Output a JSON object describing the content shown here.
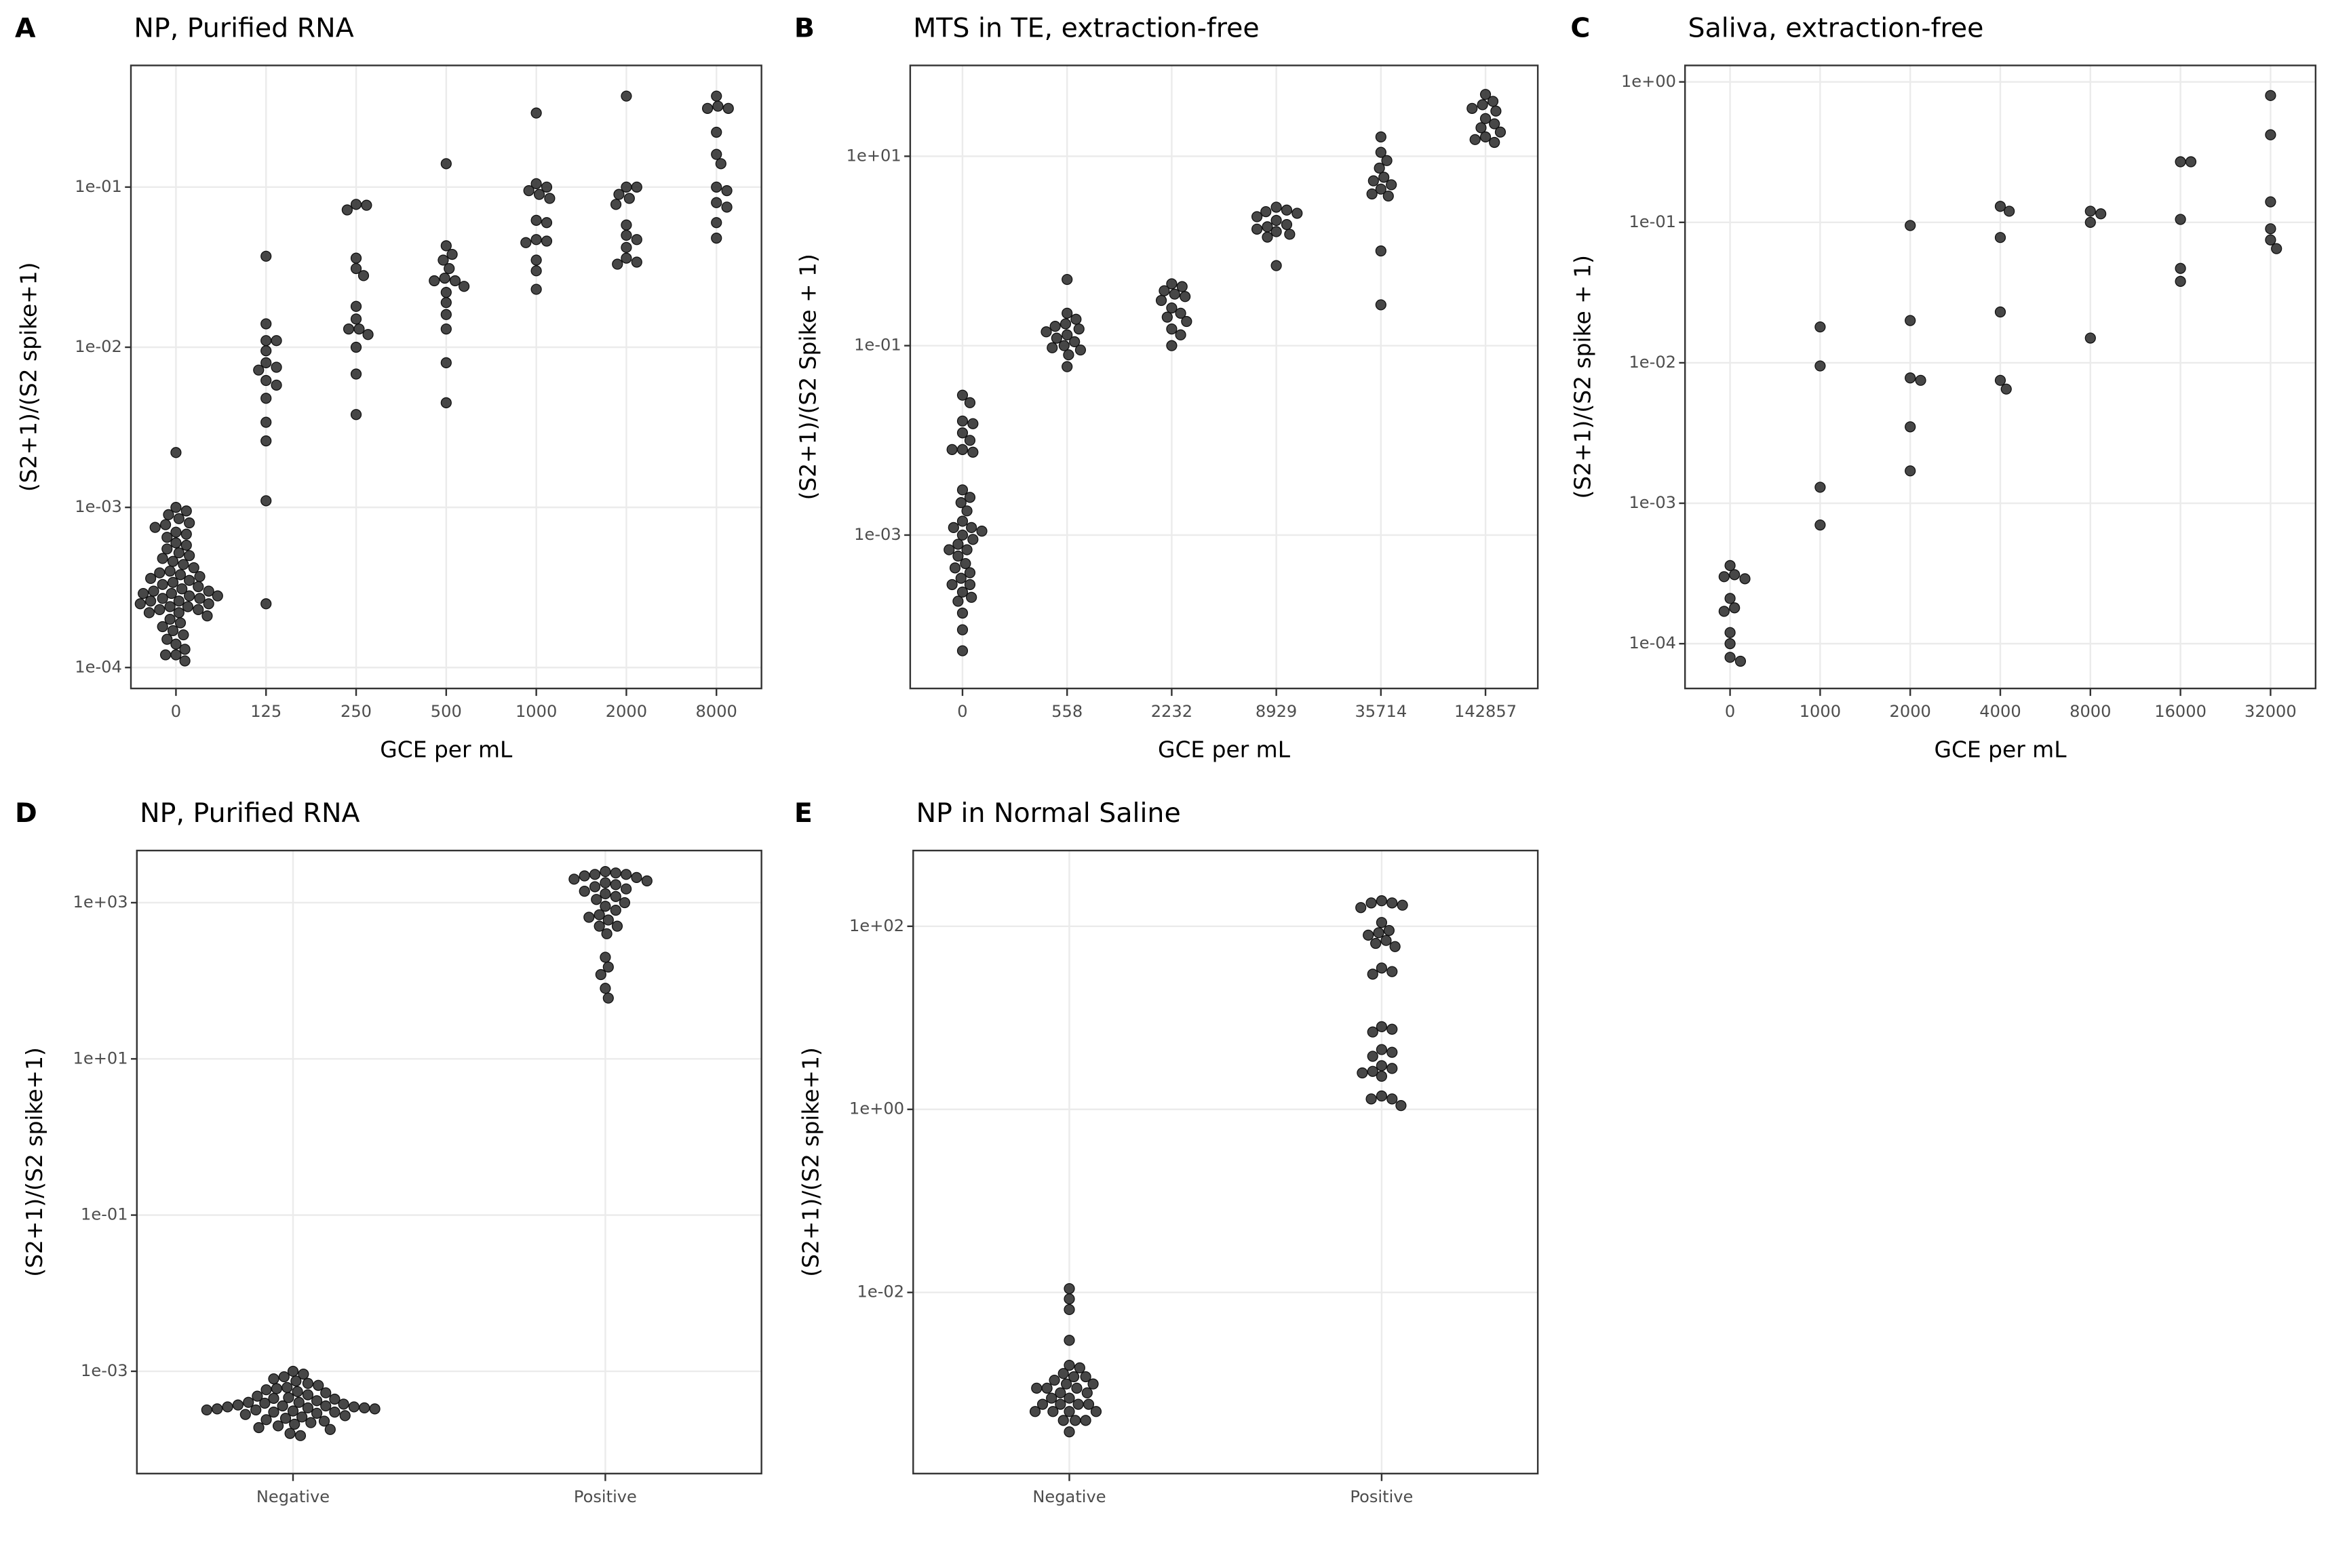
{
  "chart_data": [
    {
      "type": "strip",
      "panel_label": "A",
      "title": "NP, Purified RNA",
      "x_label": "GCE per mL",
      "y_label": "(S2+1)/(S2 spike+1)",
      "log_y": true,
      "grid": true,
      "color": "#333333",
      "ylim": [
        7.4e-05,
        0.575
      ],
      "yticks": [
        {
          "value": 0.0001,
          "label": "1e-04"
        },
        {
          "value": 0.001,
          "label": "1e-03"
        },
        {
          "value": 0.01,
          "label": "1e-02"
        },
        {
          "value": 0.1,
          "label": "1e-01"
        }
      ],
      "categories": [
        "0",
        "125",
        "250",
        "500",
        "1000",
        "2000",
        "8000"
      ],
      "values": [
        [
          0.0022,
          0.001,
          0.00095,
          0.0009,
          0.00085,
          0.0008,
          0.00078,
          0.00075,
          0.0007,
          0.00068,
          0.00065,
          0.0006,
          0.00058,
          0.00055,
          0.00052,
          0.0005,
          0.00048,
          0.00046,
          0.00044,
          0.00042,
          0.0004,
          0.00039,
          0.00038,
          0.00037,
          0.00036,
          0.00035,
          0.00034,
          0.00033,
          0.00032,
          0.00031,
          0.0003,
          0.0003,
          0.00029,
          0.00029,
          0.00028,
          0.00028,
          0.00027,
          0.00027,
          0.00026,
          0.00026,
          0.00025,
          0.00025,
          0.00024,
          0.00024,
          0.00023,
          0.00023,
          0.00022,
          0.00022,
          0.00021,
          0.0002,
          0.00019,
          0.00018,
          0.00017,
          0.00016,
          0.00015,
          0.00014,
          0.00013,
          0.00012,
          0.00012,
          0.00011
        ],
        [
          0.037,
          0.014,
          0.011,
          0.011,
          0.0095,
          0.008,
          0.0075,
          0.0072,
          0.0062,
          0.0058,
          0.0048,
          0.0034,
          0.0026,
          0.0011,
          0.00025
        ],
        [
          0.078,
          0.077,
          0.072,
          0.036,
          0.031,
          0.028,
          0.018,
          0.015,
          0.013,
          0.013,
          0.012,
          0.01,
          0.0068,
          0.0038
        ],
        [
          0.14,
          0.043,
          0.038,
          0.035,
          0.031,
          0.027,
          0.026,
          0.026,
          0.024,
          0.022,
          0.019,
          0.016,
          0.013,
          0.008,
          0.0045
        ],
        [
          0.29,
          0.105,
          0.1,
          0.095,
          0.09,
          0.085,
          0.062,
          0.06,
          0.047,
          0.046,
          0.045,
          0.035,
          0.03,
          0.023
        ],
        [
          0.37,
          0.1,
          0.1,
          0.09,
          0.085,
          0.078,
          0.058,
          0.05,
          0.047,
          0.042,
          0.036,
          0.034,
          0.033
        ],
        [
          0.37,
          0.32,
          0.31,
          0.31,
          0.22,
          0.16,
          0.14,
          0.1,
          0.095,
          0.08,
          0.075,
          0.06,
          0.048
        ]
      ]
    },
    {
      "type": "strip",
      "panel_label": "B",
      "title": "MTS in TE, extraction-free",
      "x_label": "GCE per mL",
      "y_label": "(S2+1)/(S2 Spike + 1)",
      "log_y": true,
      "grid": true,
      "color": "#333333",
      "ylim": [
        2.4e-05,
        91
      ],
      "yticks": [
        {
          "value": 0.001,
          "label": "1e-03"
        },
        {
          "value": 0.1,
          "label": "1e-01"
        },
        {
          "value": 10,
          "label": "1e+01"
        }
      ],
      "categories": [
        "0",
        "558",
        "2232",
        "8929",
        "35714",
        "142857"
      ],
      "values": [
        [
          0.03,
          0.025,
          0.016,
          0.015,
          0.012,
          0.01,
          0.008,
          0.008,
          0.0075,
          0.003,
          0.0025,
          0.0022,
          0.0018,
          0.0014,
          0.0012,
          0.0012,
          0.0011,
          0.001,
          0.0009,
          0.0008,
          0.0007,
          0.0007,
          0.0006,
          0.0005,
          0.00045,
          0.0004,
          0.00035,
          0.0003,
          0.0003,
          0.00025,
          0.00022,
          0.0002,
          0.00015,
          0.0001,
          6e-05
        ],
        [
          0.5,
          0.22,
          0.19,
          0.17,
          0.16,
          0.15,
          0.14,
          0.13,
          0.12,
          0.11,
          0.1,
          0.095,
          0.09,
          0.08,
          0.06
        ],
        [
          0.45,
          0.42,
          0.38,
          0.35,
          0.33,
          0.3,
          0.25,
          0.22,
          0.2,
          0.18,
          0.15,
          0.13,
          0.1
        ],
        [
          2.9,
          2.7,
          2.6,
          2.5,
          2.3,
          2.1,
          1.9,
          1.8,
          1.7,
          1.6,
          1.5,
          1.4,
          0.7
        ],
        [
          16,
          11,
          9,
          7.5,
          6,
          5.5,
          5,
          4.5,
          4,
          3.8,
          1,
          0.27
        ],
        [
          45,
          38,
          35,
          32,
          30,
          25,
          22,
          20,
          18,
          16,
          15,
          14
        ]
      ]
    },
    {
      "type": "strip",
      "panel_label": "C",
      "title": "Saliva, extraction-free",
      "x_label": "GCE per mL",
      "y_label": "(S2+1)/(S2 spike + 1)",
      "log_y": true,
      "grid": true,
      "color": "#333333",
      "ylim": [
        4.8e-05,
        1.31
      ],
      "yticks": [
        {
          "value": 0.0001,
          "label": "1e-04"
        },
        {
          "value": 0.001,
          "label": "1e-03"
        },
        {
          "value": 0.01,
          "label": "1e-02"
        },
        {
          "value": 0.1,
          "label": "1e-01"
        },
        {
          "value": 1,
          "label": "1e+00"
        }
      ],
      "categories": [
        "0",
        "1000",
        "2000",
        "4000",
        "8000",
        "16000",
        "32000"
      ],
      "values": [
        [
          0.00036,
          0.00031,
          0.0003,
          0.00029,
          0.00021,
          0.00018,
          0.00017,
          0.00012,
          0.0001,
          8e-05,
          7.5e-05
        ],
        [
          0.018,
          0.0095,
          0.0013,
          0.0007
        ],
        [
          0.095,
          0.02,
          0.0078,
          0.0075,
          0.0035,
          0.0017
        ],
        [
          0.13,
          0.12,
          0.078,
          0.023,
          0.0075,
          0.0065
        ],
        [
          0.12,
          0.115,
          0.1,
          0.015
        ],
        [
          0.27,
          0.27,
          0.105,
          0.047,
          0.038
        ],
        [
          0.8,
          0.42,
          0.14,
          0.09,
          0.075,
          0.065
        ]
      ]
    },
    {
      "type": "strip",
      "panel_label": "D",
      "title": "NP, Purified RNA",
      "y_label": "(S2+1)/(S2 spike+1)",
      "log_y": true,
      "grid": true,
      "color": "#333333",
      "ylim": [
        4.9e-05,
        4650
      ],
      "yticks": [
        {
          "value": 0.001,
          "label": "1e-03"
        },
        {
          "value": 0.1,
          "label": "1e-01"
        },
        {
          "value": 10,
          "label": "1e+01"
        },
        {
          "value": 1000,
          "label": "1e+03"
        }
      ],
      "categories": [
        "Negative",
        "Positive"
      ],
      "values": [
        [
          0.001,
          0.00092,
          0.00085,
          0.0008,
          0.00075,
          0.0007,
          0.00066,
          0.00062,
          0.0006,
          0.00058,
          0.00055,
          0.00053,
          0.0005,
          0.00048,
          0.00046,
          0.00045,
          0.00044,
          0.00042,
          0.0004,
          0.0004,
          0.00039,
          0.00038,
          0.00037,
          0.00036,
          0.00036,
          0.00035,
          0.00035,
          0.00034,
          0.00034,
          0.00033,
          0.00033,
          0.00032,
          0.00032,
          0.00031,
          0.0003,
          0.0003,
          0.00029,
          0.00028,
          0.00027,
          0.00026,
          0.00025,
          0.00024,
          0.00023,
          0.00022,
          0.00021,
          0.0002,
          0.00019,
          0.00018,
          0.00016,
          0.00015
        ],
        [
          2500,
          2400,
          2300,
          2300,
          2200,
          2100,
          2000,
          1900,
          1800,
          1700,
          1600,
          1500,
          1400,
          1300,
          1200,
          1100,
          1000,
          900,
          800,
          700,
          650,
          600,
          500,
          500,
          400,
          200,
          150,
          120,
          80,
          60
        ]
      ]
    },
    {
      "type": "strip",
      "panel_label": "E",
      "title": "NP in Normal Saline",
      "y_label": "(S2+1)/(S2 spike+1)",
      "log_y": true,
      "grid": true,
      "color": "#333333",
      "ylim": [
        0.000105,
        672
      ],
      "yticks": [
        {
          "value": 0.01,
          "label": "1e-02"
        },
        {
          "value": 1,
          "label": "1e+00"
        },
        {
          "value": 100,
          "label": "1e+02"
        }
      ],
      "categories": [
        "Negative",
        "Positive"
      ],
      "values": [
        [
          0.011,
          0.0085,
          0.0065,
          0.003,
          0.0016,
          0.0015,
          0.0013,
          0.0012,
          0.0012,
          0.0011,
          0.001,
          0.001,
          0.0009,
          0.0009,
          0.0009,
          0.0008,
          0.0008,
          0.0007,
          0.0007,
          0.0006,
          0.0006,
          0.0006,
          0.0006,
          0.0005,
          0.0005,
          0.0005,
          0.0005,
          0.0004,
          0.0004,
          0.0004,
          0.0003
        ],
        [
          190,
          180,
          180,
          170,
          160,
          110,
          90,
          85,
          80,
          70,
          65,
          60,
          35,
          32,
          30,
          8,
          7.5,
          7,
          4.5,
          4.2,
          3.8,
          3,
          2.8,
          2.6,
          2.5,
          2.3,
          1.4,
          1.3,
          1.3,
          1.1
        ]
      ]
    }
  ]
}
